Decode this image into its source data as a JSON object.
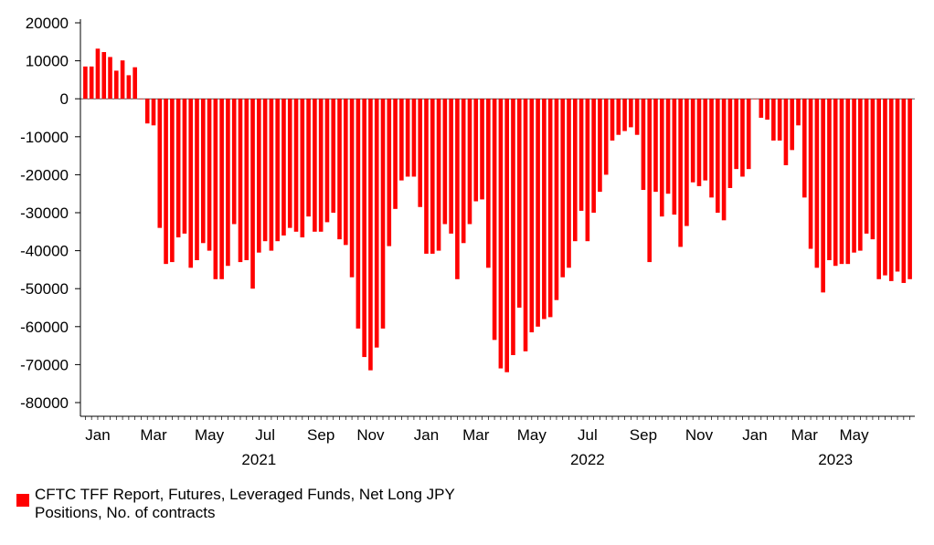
{
  "chart_data": {
    "type": "bar",
    "color": "#ff0000",
    "ylim": [
      -85000,
      22000
    ],
    "yticks": [
      20000,
      10000,
      0,
      -10000,
      -20000,
      -30000,
      -40000,
      -50000,
      -60000,
      -70000,
      -80000
    ],
    "ytick_labels": [
      "20000",
      "10000",
      "0",
      "-10000",
      "-20000",
      "-30000",
      "-40000",
      "-50000",
      "-60000",
      "-70000",
      "-80000"
    ],
    "month_ticks": [
      {
        "label": "Jan",
        "index": 2
      },
      {
        "label": "Mar",
        "index": 11
      },
      {
        "label": "May",
        "index": 20
      },
      {
        "label": "Jul",
        "index": 29
      },
      {
        "label": "Sep",
        "index": 38
      },
      {
        "label": "Nov",
        "index": 46
      },
      {
        "label": "Jan",
        "index": 55
      },
      {
        "label": "Mar",
        "index": 63
      },
      {
        "label": "May",
        "index": 72
      },
      {
        "label": "Jul",
        "index": 81
      },
      {
        "label": "Sep",
        "index": 90
      },
      {
        "label": "Nov",
        "index": 99
      },
      {
        "label": "Jan",
        "index": 108
      },
      {
        "label": "Mar",
        "index": 116
      },
      {
        "label": "May",
        "index": 124
      }
    ],
    "year_labels": [
      {
        "label": "2021",
        "index": 28
      },
      {
        "label": "2022",
        "index": 81
      },
      {
        "label": "2023",
        "index": 121
      }
    ],
    "legend": "CFTC TFF Report, Futures, Leveraged Funds, Net Long JPY Positions, No. of contracts",
    "values": [
      8500,
      8500,
      13200,
      12300,
      11000,
      7400,
      10100,
      6200,
      8300,
      0,
      -6500,
      -7000,
      -34000,
      -43500,
      -43000,
      -36500,
      -35500,
      -44500,
      -42500,
      -38000,
      -40000,
      -47500,
      -47500,
      -44000,
      -33000,
      -43000,
      -42500,
      -50000,
      -40500,
      -37500,
      -40000,
      -37500,
      -36000,
      -34000,
      -35000,
      -36500,
      -31000,
      -35000,
      -35000,
      -32500,
      -30000,
      -37000,
      -38500,
      -47000,
      -60500,
      -68000,
      -71500,
      -65500,
      -60500,
      -38800,
      -29000,
      -21500,
      -20500,
      -20500,
      -28500,
      -40800,
      -40800,
      -40000,
      -33000,
      -35500,
      -47500,
      -38000,
      -33000,
      -27000,
      -26500,
      -44500,
      -63500,
      -71000,
      -72000,
      -67500,
      -55000,
      -66500,
      -61500,
      -60000,
      -58000,
      -57500,
      -53000,
      -47000,
      -44500,
      -37500,
      -29500,
      -37500,
      -30000,
      -24500,
      -20000,
      -11000,
      -9500,
      -8500,
      -7500,
      -9500,
      -24000,
      -43000,
      -24500,
      -31000,
      -25000,
      -30500,
      -39000,
      -33500,
      -22000,
      -23000,
      -21500,
      -26000,
      -30000,
      -32000,
      -23500,
      -18500,
      -20500,
      -18500,
      0,
      -5000,
      -5500,
      -11000,
      -11000,
      -17500,
      -13500,
      -7000,
      -26000,
      -39500,
      -44500,
      -51000,
      -42500,
      -44000,
      -43500,
      -43500,
      -40500,
      -40000,
      -35500,
      -37000,
      -47500,
      -46500,
      -48000,
      -45500,
      -48500,
      -47500
    ]
  }
}
